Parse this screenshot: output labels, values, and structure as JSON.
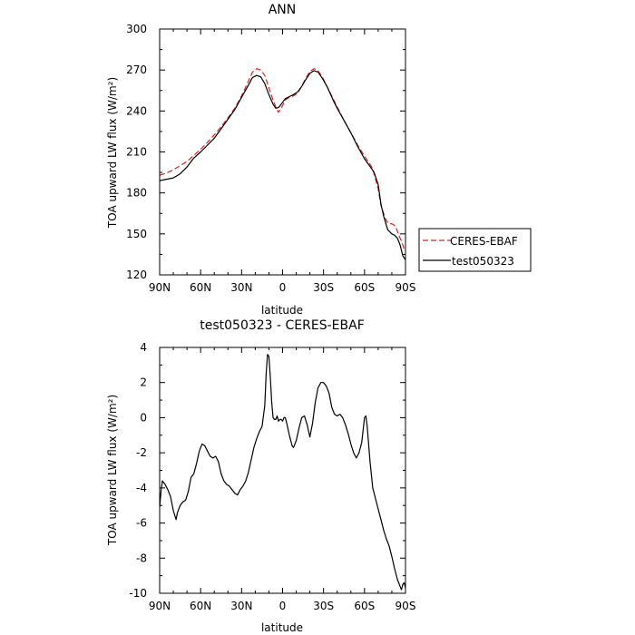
{
  "chart_data": [
    {
      "type": "line",
      "title": "ANN",
      "xlabel": "latitude",
      "ylabel": "TOA upward LW flux (W/m²)",
      "xlim": [
        90,
        -90
      ],
      "ylim": [
        120,
        300
      ],
      "x_tick_values": [
        90,
        60,
        30,
        0,
        -30,
        -60,
        -90
      ],
      "x_tick_labels": [
        "90N",
        "60N",
        "30N",
        "0",
        "30S",
        "60S",
        "90S"
      ],
      "y_ticks": [
        120,
        150,
        180,
        210,
        240,
        270,
        300
      ],
      "grid": false,
      "legend_position": "outside-right",
      "series": [
        {
          "name": "CERES-EBAF",
          "color": "#e0201b",
          "dash": "dashed",
          "points": [
            [
              90,
              193
            ],
            [
              85,
              194.5
            ],
            [
              80,
              197
            ],
            [
              75,
              200
            ],
            [
              70,
              203
            ],
            [
              65,
              207.5
            ],
            [
              60,
              212
            ],
            [
              55,
              217
            ],
            [
              50,
              222.5
            ],
            [
              45,
              228.5
            ],
            [
              40,
              235
            ],
            [
              35,
              242
            ],
            [
              30,
              251
            ],
            [
              25,
              262
            ],
            [
              22,
              268.5
            ],
            [
              19,
              271
            ],
            [
              16,
              270
            ],
            [
              13,
              266
            ],
            [
              10,
              257
            ],
            [
              7,
              248
            ],
            [
              5,
              243
            ],
            [
              3,
              239
            ],
            [
              1,
              242
            ],
            [
              -2,
              248
            ],
            [
              -5,
              250
            ],
            [
              -8,
              251
            ],
            [
              -11,
              253
            ],
            [
              -14,
              258
            ],
            [
              -17,
              264
            ],
            [
              -20,
              269
            ],
            [
              -23,
              271
            ],
            [
              -26,
              269.5
            ],
            [
              -29,
              265
            ],
            [
              -33,
              257
            ],
            [
              -37,
              249
            ],
            [
              -40,
              243
            ],
            [
              -45,
              233
            ],
            [
              -50,
              224
            ],
            [
              -55,
              215
            ],
            [
              -60,
              207
            ],
            [
              -65,
              199.5
            ],
            [
              -67,
              194
            ],
            [
              -70,
              183
            ],
            [
              -72,
              171
            ],
            [
              -75,
              162
            ],
            [
              -77,
              158
            ],
            [
              -79,
              157.5
            ],
            [
              -81,
              157
            ],
            [
              -83,
              155
            ],
            [
              -85,
              149
            ],
            [
              -87,
              145
            ],
            [
              -88,
              142
            ],
            [
              -89,
              139
            ]
          ]
        },
        {
          "name": "test050323",
          "color": "#000000",
          "dash": "solid",
          "points": [
            [
              90,
              189
            ],
            [
              85,
              190
            ],
            [
              80,
              191
            ],
            [
              75,
              194
            ],
            [
              70,
              199
            ],
            [
              65,
              205.5
            ],
            [
              60,
              210
            ],
            [
              55,
              215
            ],
            [
              50,
              220
            ],
            [
              45,
              227
            ],
            [
              40,
              234
            ],
            [
              35,
              241
            ],
            [
              30,
              250
            ],
            [
              25,
              259
            ],
            [
              22,
              264.5
            ],
            [
              19,
              266
            ],
            [
              16,
              265
            ],
            [
              13,
              260
            ],
            [
              10,
              252
            ],
            [
              7,
              245
            ],
            [
              5,
              242
            ],
            [
              3,
              242.5
            ],
            [
              1,
              245
            ],
            [
              -2,
              249
            ],
            [
              -5,
              250.5
            ],
            [
              -8,
              252
            ],
            [
              -11,
              254
            ],
            [
              -14,
              258
            ],
            [
              -17,
              263
            ],
            [
              -20,
              267.5
            ],
            [
              -23,
              269.5
            ],
            [
              -26,
              268.5
            ],
            [
              -29,
              264
            ],
            [
              -33,
              257
            ],
            [
              -37,
              248
            ],
            [
              -40,
              242
            ],
            [
              -45,
              233
            ],
            [
              -50,
              224
            ],
            [
              -55,
              214
            ],
            [
              -60,
              205
            ],
            [
              -65,
              198
            ],
            [
              -67,
              195
            ],
            [
              -70,
              186
            ],
            [
              -72,
              172
            ],
            [
              -74,
              163
            ],
            [
              -77,
              153
            ],
            [
              -80,
              150
            ],
            [
              -82,
              149
            ],
            [
              -84,
              147
            ],
            [
              -86,
              142
            ],
            [
              -88,
              134
            ],
            [
              -90,
              131
            ]
          ]
        }
      ]
    },
    {
      "type": "line",
      "title": "test050323 - CERES-EBAF",
      "xlabel": "latitude",
      "ylabel": "TOA upward LW flux (W/m²)",
      "xlim": [
        90,
        -90
      ],
      "ylim": [
        -10,
        4
      ],
      "x_tick_values": [
        90,
        60,
        30,
        0,
        -30,
        -60,
        -90
      ],
      "x_tick_labels": [
        "90N",
        "60N",
        "30N",
        "0",
        "30S",
        "60S",
        "90S"
      ],
      "y_ticks": [
        -10,
        -8,
        -6,
        -4,
        -2,
        0,
        2,
        4
      ],
      "grid": false,
      "series": [
        {
          "color": "#000000",
          "points": [
            [
              90,
              -5.1
            ],
            [
              89,
              -4.2
            ],
            [
              88,
              -3.6
            ],
            [
              86,
              -3.8
            ],
            [
              84,
              -4.1
            ],
            [
              82,
              -4.5
            ],
            [
              80,
              -5.3
            ],
            [
              78,
              -5.8
            ],
            [
              77,
              -5.4
            ],
            [
              75,
              -5
            ],
            [
              73,
              -4.8
            ],
            [
              71,
              -4.7
            ],
            [
              69,
              -4.2
            ],
            [
              67,
              -3.4
            ],
            [
              65,
              -3.2
            ],
            [
              63,
              -2.6
            ],
            [
              61,
              -1.9
            ],
            [
              59,
              -1.5
            ],
            [
              57,
              -1.6
            ],
            [
              55,
              -1.9
            ],
            [
              53,
              -2.2
            ],
            [
              51,
              -2.3
            ],
            [
              49,
              -2.2
            ],
            [
              47,
              -2.5
            ],
            [
              45,
              -3.2
            ],
            [
              43,
              -3.6
            ],
            [
              41,
              -3.8
            ],
            [
              39,
              -3.9
            ],
            [
              37,
              -4.1
            ],
            [
              35,
              -4.3
            ],
            [
              33,
              -4.4
            ],
            [
              31,
              -4.1
            ],
            [
              29,
              -3.9
            ],
            [
              27,
              -3.6
            ],
            [
              25,
              -3.1
            ],
            [
              23,
              -2.4
            ],
            [
              21,
              -1.7
            ],
            [
              19,
              -1.2
            ],
            [
              17,
              -0.8
            ],
            [
              15,
              -0.5
            ],
            [
              13,
              0.7
            ],
            [
              12,
              2.5
            ],
            [
              11,
              3.6
            ],
            [
              10,
              3.5
            ],
            [
              9,
              2.4
            ],
            [
              8,
              0.9
            ],
            [
              7,
              0
            ],
            [
              6,
              -0.1
            ],
            [
              5,
              -0.1
            ],
            [
              4,
              0.1
            ],
            [
              3,
              -0.2
            ],
            [
              2,
              -0.1
            ],
            [
              1,
              -0.1
            ],
            [
              0,
              -0.2
            ],
            [
              -1,
              0
            ],
            [
              -2,
              0
            ],
            [
              -3,
              -0.3
            ],
            [
              -5,
              -1
            ],
            [
              -7,
              -1.6
            ],
            [
              -8,
              -1.7
            ],
            [
              -10,
              -1.3
            ],
            [
              -12,
              -0.6
            ],
            [
              -14,
              0
            ],
            [
              -16,
              0.1
            ],
            [
              -18,
              -0.4
            ],
            [
              -20,
              -1.1
            ],
            [
              -22,
              -0.3
            ],
            [
              -24,
              0.9
            ],
            [
              -26,
              1.7
            ],
            [
              -28,
              2
            ],
            [
              -30,
              2
            ],
            [
              -32,
              1.8
            ],
            [
              -34,
              1.4
            ],
            [
              -36,
              0.6
            ],
            [
              -38,
              0.2
            ],
            [
              -40,
              0.1
            ],
            [
              -42,
              0.2
            ],
            [
              -44,
              0
            ],
            [
              -46,
              -0.4
            ],
            [
              -48,
              -0.9
            ],
            [
              -50,
              -1.5
            ],
            [
              -52,
              -2
            ],
            [
              -54,
              -2.3
            ],
            [
              -56,
              -2
            ],
            [
              -58,
              -1.4
            ],
            [
              -60,
              0
            ],
            [
              -61,
              0.1
            ],
            [
              -62,
              -0.5
            ],
            [
              -64,
              -2.5
            ],
            [
              -66,
              -4
            ],
            [
              -68,
              -4.6
            ],
            [
              -70,
              -5.2
            ],
            [
              -72,
              -5.8
            ],
            [
              -74,
              -6.4
            ],
            [
              -76,
              -6.9
            ],
            [
              -78,
              -7.3
            ],
            [
              -80,
              -7.9
            ],
            [
              -82,
              -8.6
            ],
            [
              -84,
              -9.2
            ],
            [
              -86,
              -9.6
            ],
            [
              -87,
              -9.8
            ],
            [
              -88,
              -9.5
            ],
            [
              -89,
              -9.4
            ],
            [
              -90,
              -9.7
            ]
          ]
        }
      ]
    }
  ]
}
